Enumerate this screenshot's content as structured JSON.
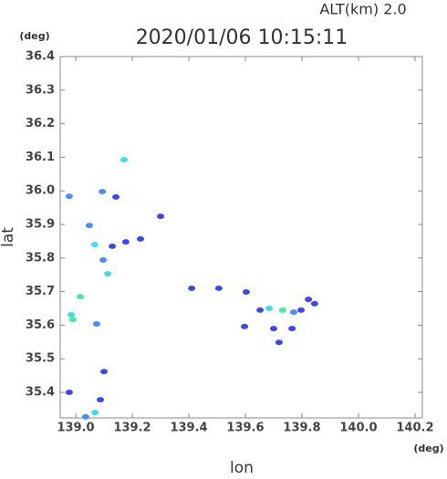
{
  "chart_data": {
    "type": "scatter",
    "title": "2020/01/06 10:15:11",
    "subtitle": "ALT(km)  2.0",
    "x_label": "lon",
    "y_label": "lat",
    "x_unit": "(deg)",
    "y_unit": "(deg)",
    "xlim": [
      138.945,
      140.226
    ],
    "ylim": [
      35.324,
      36.4
    ],
    "xticks": [
      {
        "value": 139,
        "label": "139.0"
      },
      139.2,
      139.4,
      139.6,
      139.8,
      {
        "value": 140,
        "label": "140.0"
      },
      140.2
    ],
    "yticks": [
      35.4,
      35.5,
      35.6,
      35.7,
      35.8,
      35.9,
      {
        "value": 36,
        "label": "36.0"
      },
      36.1,
      36.2,
      36.3,
      36.4
    ],
    "grid": false,
    "series": [
      {
        "color": "#3a48ee",
        "x": [
          139.142,
          139.3,
          139.129,
          139.177,
          139.229,
          138.977,
          139.1,
          139.087,
          139.41,
          139.506,
          139.603,
          139.797,
          139.823,
          139.845,
          139.765,
          139.7,
          139.719,
          139.652,
          139.597
        ],
        "y": [
          35.982,
          35.924,
          35.835,
          35.848,
          35.857,
          35.4,
          35.462,
          35.378,
          35.71,
          35.71,
          35.699,
          35.645,
          35.677,
          35.664,
          35.59,
          35.59,
          35.549,
          35.645,
          35.596
        ]
      },
      {
        "color": "#4a8cff",
        "x": [
          138.977,
          139.094,
          139.048,
          139.097,
          139.074,
          139.035,
          139.771
        ],
        "y": [
          35.984,
          35.998,
          35.897,
          35.794,
          35.604,
          35.327,
          35.639
        ]
      },
      {
        "color": "#40dcee",
        "x": [
          139.171,
          139.067,
          139.113,
          138.984,
          139.068,
          139.684
        ],
        "y": [
          36.093,
          35.84,
          35.753,
          35.631,
          35.34,
          35.65
        ]
      },
      {
        "color": "#44ee99",
        "x": [
          139.016,
          138.99,
          139.732
        ],
        "y": [
          35.685,
          35.617,
          35.645
        ]
      }
    ]
  }
}
